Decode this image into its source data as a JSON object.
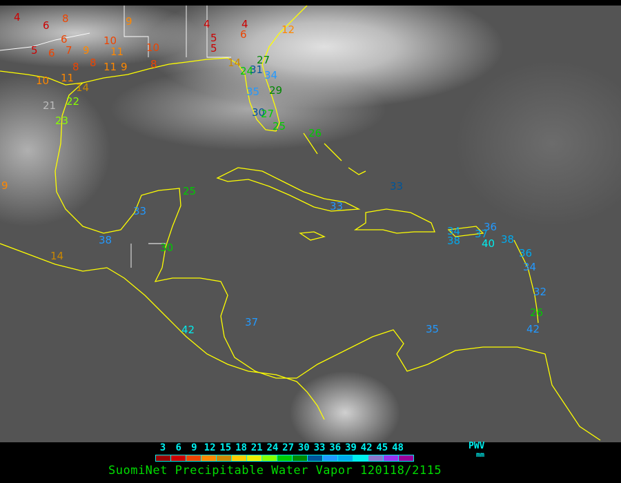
{
  "title": "SuomiNet Precipitable Water Vapor 120118/2115",
  "legend": {
    "unit_label": "PWV",
    "unit": "mm",
    "ticks": [
      "3",
      "6",
      "9",
      "12",
      "15",
      "18",
      "21",
      "24",
      "27",
      "30",
      "33",
      "36",
      "39",
      "42",
      "45",
      "48"
    ],
    "colors": [
      "#990000",
      "#cc0000",
      "#ee4400",
      "#ff8800",
      "#cc8800",
      "#ffcc00",
      "#eeee00",
      "#88ff00",
      "#00cc00",
      "#008800",
      "#005599",
      "#2299ff",
      "#00aaee",
      "#00eeee",
      "#8877cc",
      "#9933ee",
      "#990099"
    ]
  },
  "stations": [
    {
      "value": "4",
      "color": "#cc0000"
    },
    {
      "value": "6",
      "color": "#cc0000"
    },
    {
      "value": "8",
      "color": "#ee4400"
    },
    {
      "value": "6",
      "color": "#ee4400"
    },
    {
      "value": "10",
      "color": "#ee4400"
    },
    {
      "value": "9",
      "color": "#ff8800"
    },
    {
      "value": "5",
      "color": "#cc0000"
    },
    {
      "value": "6",
      "color": "#ee4400"
    },
    {
      "value": "7",
      "color": "#ee4400"
    },
    {
      "value": "9",
      "color": "#ff8800"
    },
    {
      "value": "11",
      "color": "#ff8800"
    },
    {
      "value": "10",
      "color": "#ee4400"
    },
    {
      "value": "8",
      "color": "#ee4400"
    },
    {
      "value": "8",
      "color": "#ee4400"
    },
    {
      "value": "11",
      "color": "#ff8800"
    },
    {
      "value": "10",
      "color": "#ff8800"
    },
    {
      "value": "11",
      "color": "#ff8800"
    },
    {
      "value": "14",
      "color": "#cc8800"
    },
    {
      "value": "4",
      "color": "#cc0000"
    },
    {
      "value": "5",
      "color": "#cc0000"
    },
    {
      "value": "5",
      "color": "#cc0000"
    },
    {
      "value": "4",
      "color": "#cc0000"
    },
    {
      "value": "6",
      "color": "#ee4400"
    },
    {
      "value": "12",
      "color": "#ff8800"
    },
    {
      "value": "8",
      "color": "#ee4400"
    },
    {
      "value": "9",
      "color": "#ff8800"
    },
    {
      "value": "14",
      "color": "#cc8800"
    },
    {
      "value": "27",
      "color": "#008800"
    },
    {
      "value": "24",
      "color": "#00cc00"
    },
    {
      "value": "31",
      "color": "#005599"
    },
    {
      "value": "34",
      "color": "#2299ff"
    },
    {
      "value": "35",
      "color": "#2299ff"
    },
    {
      "value": "29",
      "color": "#008800"
    },
    {
      "value": "30",
      "color": "#005599"
    },
    {
      "value": "27",
      "color": "#00cc00"
    },
    {
      "value": "25",
      "color": "#00cc00"
    },
    {
      "value": "26",
      "color": "#00cc00"
    },
    {
      "value": "22",
      "color": "#88ff00"
    },
    {
      "value": "21",
      "color": "#bbbbbb"
    },
    {
      "value": "23",
      "color": "#88ff00"
    },
    {
      "value": "9",
      "color": "#ff8800"
    },
    {
      "value": "14",
      "color": "#cc8800"
    },
    {
      "value": "25",
      "color": "#00cc00"
    },
    {
      "value": "33",
      "color": "#2299ff"
    },
    {
      "value": "38",
      "color": "#2299ff"
    },
    {
      "value": "30",
      "color": "#00cc00"
    },
    {
      "value": "33",
      "color": "#005599"
    },
    {
      "value": "33",
      "color": "#2299ff"
    },
    {
      "value": "34",
      "color": "#00aaee"
    },
    {
      "value": "38",
      "color": "#00aaee"
    },
    {
      "value": "36",
      "color": "#2299ff"
    },
    {
      "value": "37",
      "color": "#00aaee"
    },
    {
      "value": "40",
      "color": "#00eeee"
    },
    {
      "value": "38",
      "color": "#00aaee"
    },
    {
      "value": "36",
      "color": "#00aaee"
    },
    {
      "value": "34",
      "color": "#2299ff"
    },
    {
      "value": "32",
      "color": "#2299ff"
    },
    {
      "value": "26",
      "color": "#00cc00"
    },
    {
      "value": "42",
      "color": "#2299ff"
    },
    {
      "value": "42",
      "color": "#00eeee"
    },
    {
      "value": "37",
      "color": "#2299ff"
    },
    {
      "value": "35",
      "color": "#2299ff"
    }
  ]
}
